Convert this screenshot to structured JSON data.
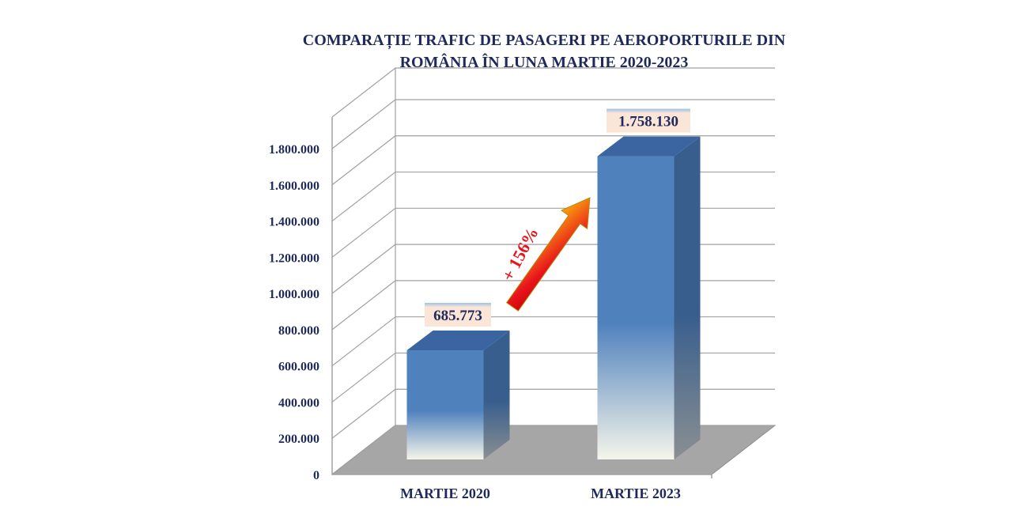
{
  "chart_data": {
    "type": "bar",
    "title": [
      "COMPARAȚIE TRAFIC DE PASAGERI PE AEROPORTURILE DIN",
      "ROMÂNIA ÎN LUNA MARTIE 2020-2023"
    ],
    "categories": [
      "MARTIE 2020",
      "MARTIE 2023"
    ],
    "values": [
      685773,
      1758130
    ],
    "data_labels": [
      "685.773",
      "1.758.130"
    ],
    "y_ticks": [
      0,
      200000,
      400000,
      600000,
      800000,
      1000000,
      1200000,
      1400000,
      1600000,
      1800000
    ],
    "y_tick_labels": [
      "0",
      "200.000",
      "400.000",
      "600.000",
      "800.000",
      "1.000.000",
      "1.200.000",
      "1.400.000",
      "1.600.000",
      "1.800.000"
    ],
    "ylim": [
      0,
      1800000
    ],
    "grid": true,
    "style": "3d",
    "annotation": {
      "text": "+ 156%",
      "from": "MARTIE 2020",
      "to": "MARTIE 2023"
    },
    "colors": {
      "bar_front": "#4f81bd",
      "bar_side": "#385e8d",
      "bar_top": "#3b65a0",
      "floor": "#a6a6a6",
      "label_bg": "#fbe5d6",
      "title_text": "#1f2a5c",
      "annotation_text": "#e8141c",
      "grid": "#a0a0a0"
    }
  }
}
